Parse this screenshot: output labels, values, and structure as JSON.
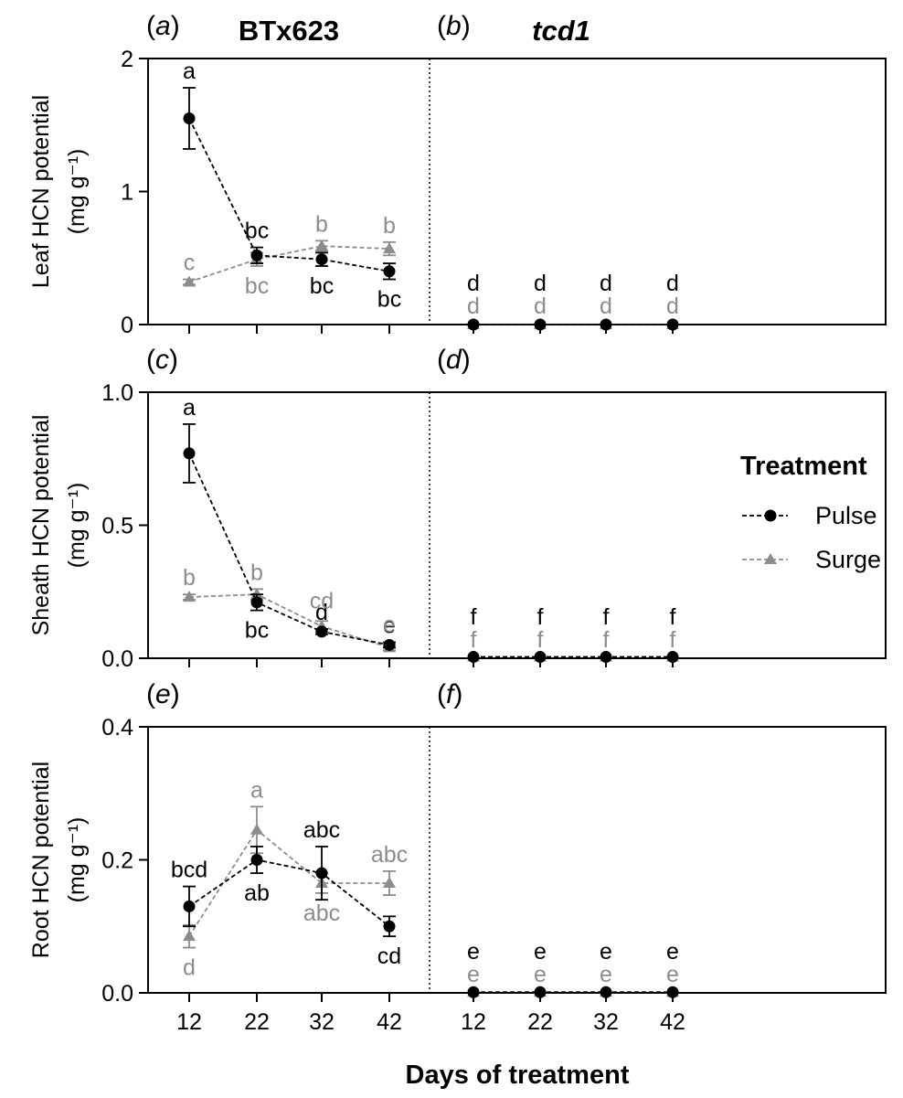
{
  "figure": {
    "genotype_labels": [
      "BTx623",
      "tcd1"
    ],
    "xlabel": "Days of treatment",
    "legend": {
      "title": "Treatment",
      "items": [
        "Pulse",
        "Surge"
      ],
      "placement": "right"
    },
    "colors": {
      "pulse": "#000000",
      "surge": "#8c8c8c"
    }
  },
  "chart_data": [
    {
      "panel": "a",
      "panel_label": "a",
      "type": "line",
      "genotype": "BTx623",
      "ylabel": "Leaf HCN potential",
      "yunit": "(mg g⁻¹)",
      "ylim": [
        0,
        2
      ],
      "yticks": [
        "0",
        "1",
        "2"
      ],
      "ytick_values": [
        0,
        1,
        2
      ],
      "x": [
        12,
        22,
        32,
        42
      ],
      "series": [
        {
          "name": "Pulse",
          "values": [
            1.55,
            0.52,
            0.49,
            0.4
          ],
          "errors": [
            0.23,
            0.06,
            0.05,
            0.06
          ],
          "letters": [
            "a",
            "bc",
            "bc",
            "bc"
          ],
          "letter_pos": [
            "above",
            "above",
            "below",
            "below"
          ]
        },
        {
          "name": "Surge",
          "values": [
            0.32,
            0.49,
            0.59,
            0.57
          ],
          "errors": [
            0.02,
            0.05,
            0.04,
            0.05
          ],
          "letters": [
            "c",
            "bc",
            "b",
            "b"
          ],
          "letter_pos": [
            "above",
            "below",
            "above",
            "above"
          ]
        }
      ]
    },
    {
      "panel": "b",
      "panel_label": "b",
      "type": "line",
      "genotype": "tcd1",
      "ylim": [
        0,
        2
      ],
      "x": [
        12,
        22,
        32,
        42
      ],
      "series": [
        {
          "name": "Pulse",
          "values": [
            0,
            0,
            0,
            0
          ],
          "errors": [
            0,
            0,
            0,
            0
          ],
          "letters": [
            "d",
            "d",
            "d",
            "d"
          ],
          "letter_pos": [
            "stack1",
            "stack1",
            "stack1",
            "stack1"
          ]
        },
        {
          "name": "Surge",
          "values": [
            0,
            0,
            0,
            0
          ],
          "errors": [
            0,
            0,
            0,
            0
          ],
          "letters": [
            "d",
            "d",
            "d",
            "d"
          ],
          "letter_pos": [
            "stack0",
            "stack0",
            "stack0",
            "stack0"
          ]
        }
      ]
    },
    {
      "panel": "c",
      "panel_label": "c",
      "type": "line",
      "genotype": "BTx623",
      "ylabel": "Sheath HCN potential",
      "yunit": "(mg g⁻¹)",
      "ylim": [
        0,
        1
      ],
      "yticks": [
        "0.0",
        "0.5",
        "1.0"
      ],
      "ytick_values": [
        0,
        0.5,
        1
      ],
      "x": [
        12,
        22,
        32,
        42
      ],
      "series": [
        {
          "name": "Pulse",
          "values": [
            0.77,
            0.21,
            0.1,
            0.05
          ],
          "errors": [
            0.11,
            0.03,
            0.01,
            0.01
          ],
          "letters": [
            "a",
            "bc",
            "d",
            "e"
          ],
          "letter_pos": [
            "above",
            "below",
            "above",
            "above"
          ]
        },
        {
          "name": "Surge",
          "values": [
            0.23,
            0.24,
            0.12,
            0.04
          ],
          "errors": [
            0.01,
            0.02,
            0.02,
            0.01
          ],
          "letters": [
            "b",
            "b",
            "cd",
            "e"
          ],
          "letter_pos": [
            "above",
            "above",
            "above2",
            "above2"
          ]
        }
      ]
    },
    {
      "panel": "d",
      "panel_label": "d",
      "type": "line",
      "genotype": "tcd1",
      "ylim": [
        0,
        1
      ],
      "x": [
        12,
        22,
        32,
        42
      ],
      "series": [
        {
          "name": "Pulse",
          "values": [
            0.005,
            0.005,
            0.005,
            0.005
          ],
          "errors": [
            0,
            0,
            0,
            0
          ],
          "letters": [
            "f",
            "f",
            "f",
            "f"
          ],
          "letter_pos": [
            "stack1",
            "stack1",
            "stack1",
            "stack1"
          ]
        },
        {
          "name": "Surge",
          "values": [
            0.005,
            0.005,
            0.005,
            0.005
          ],
          "errors": [
            0,
            0,
            0,
            0
          ],
          "letters": [
            "f",
            "f",
            "f",
            "f"
          ],
          "letter_pos": [
            "stack0",
            "stack0",
            "stack0",
            "stack0"
          ]
        }
      ]
    },
    {
      "panel": "e",
      "panel_label": "e",
      "type": "line",
      "genotype": "BTx623",
      "ylabel": "Root HCN potential",
      "yunit": "(mg g⁻¹)",
      "ylim": [
        0,
        0.4
      ],
      "yticks": [
        "0.0",
        "0.2",
        "0.4"
      ],
      "ytick_values": [
        0,
        0.2,
        0.4
      ],
      "x": [
        12,
        22,
        32,
        42
      ],
      "series": [
        {
          "name": "Pulse",
          "values": [
            0.13,
            0.2,
            0.18,
            0.1
          ],
          "errors": [
            0.03,
            0.02,
            0.04,
            0.015
          ],
          "letters": [
            "bcd",
            "ab",
            "abc",
            "cd"
          ],
          "letter_pos": [
            "above",
            "below",
            "above",
            "below"
          ]
        },
        {
          "name": "Surge",
          "values": [
            0.085,
            0.245,
            0.165,
            0.165
          ],
          "errors": [
            0.017,
            0.035,
            0.015,
            0.018
          ],
          "letters": [
            "d",
            "a",
            "abc",
            "abc"
          ],
          "letter_pos": [
            "below",
            "above",
            "below",
            "above"
          ]
        }
      ]
    },
    {
      "panel": "f",
      "panel_label": "f",
      "type": "line",
      "genotype": "tcd1",
      "ylim": [
        0,
        0.4
      ],
      "x": [
        12,
        22,
        32,
        42
      ],
      "series": [
        {
          "name": "Pulse",
          "values": [
            0.001,
            0.001,
            0.001,
            0.001
          ],
          "errors": [
            0,
            0,
            0,
            0
          ],
          "letters": [
            "e",
            "e",
            "e",
            "e"
          ],
          "letter_pos": [
            "stack1",
            "stack1",
            "stack1",
            "stack1"
          ]
        },
        {
          "name": "Surge",
          "values": [
            0.001,
            0.001,
            0.001,
            0.001
          ],
          "errors": [
            0,
            0,
            0,
            0
          ],
          "letters": [
            "e",
            "e",
            "e",
            "e"
          ],
          "letter_pos": [
            "stack0",
            "stack0",
            "stack0",
            "stack0"
          ]
        }
      ]
    }
  ]
}
